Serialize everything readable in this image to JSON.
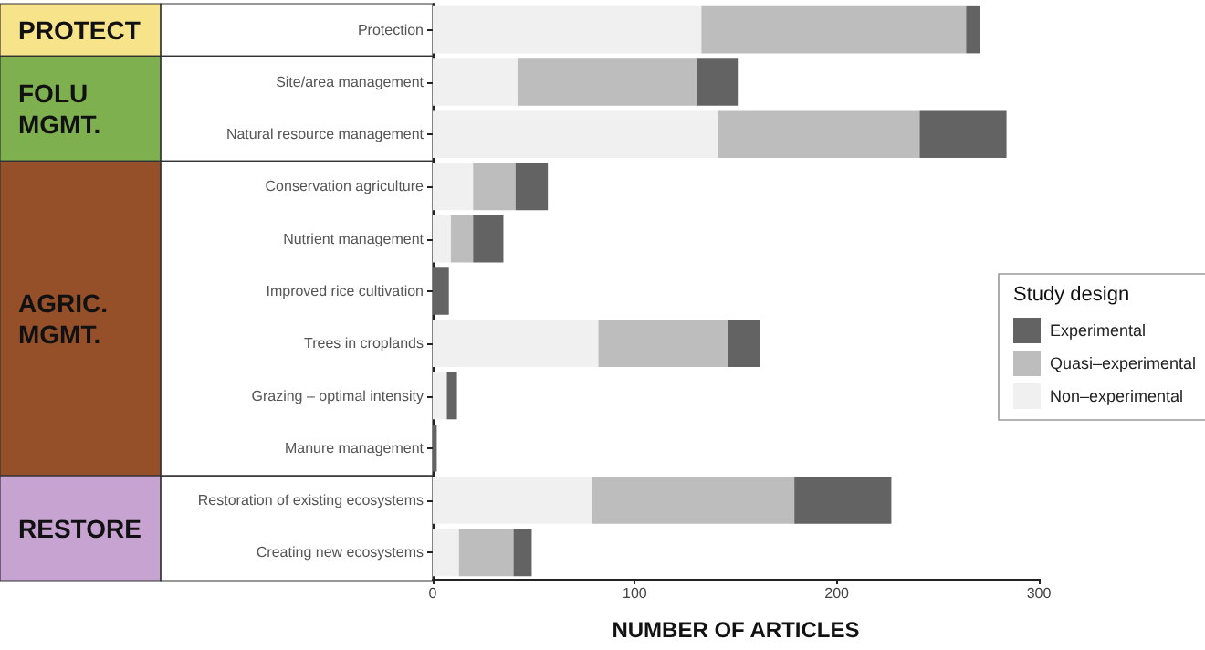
{
  "chart_data": {
    "type": "bar",
    "orientation": "horizontal",
    "stacked": true,
    "xlabel": "NUMBER OF ARTICLES",
    "legend_title": "Study design",
    "legend": "right",
    "categories": [
      "Protection",
      "Site/area management",
      "Natural resource management",
      "Conservation agriculture",
      "Nutrient management",
      "Improved rice cultivation",
      "Trees in croplands",
      "Grazing – optimal intensity",
      "Manure management",
      "Restoration of existing ecosystems",
      "Creating new ecosystems"
    ],
    "series": [
      {
        "name": "Non–experimental",
        "color": "#f0f0f0",
        "values": [
          133,
          42,
          141,
          20,
          9,
          0,
          82,
          7,
          0,
          79,
          13
        ]
      },
      {
        "name": "Quasi–experimental",
        "color": "#bdbdbd",
        "values": [
          131,
          89,
          100,
          21,
          11,
          0,
          64,
          0,
          0,
          100,
          27
        ]
      },
      {
        "name": "Experimental",
        "color": "#636363",
        "values": [
          7,
          20,
          43,
          16,
          15,
          8,
          16,
          5,
          2,
          48,
          9
        ]
      }
    ],
    "xlim": [
      0,
      300
    ],
    "xticks": [
      0,
      100,
      200,
      300
    ],
    "grid": false,
    "annotations": [
      "PROTECT",
      "FOLU\nMGMT.",
      "AGRIC.\nMGMT.",
      "RESTORE"
    ]
  }
}
